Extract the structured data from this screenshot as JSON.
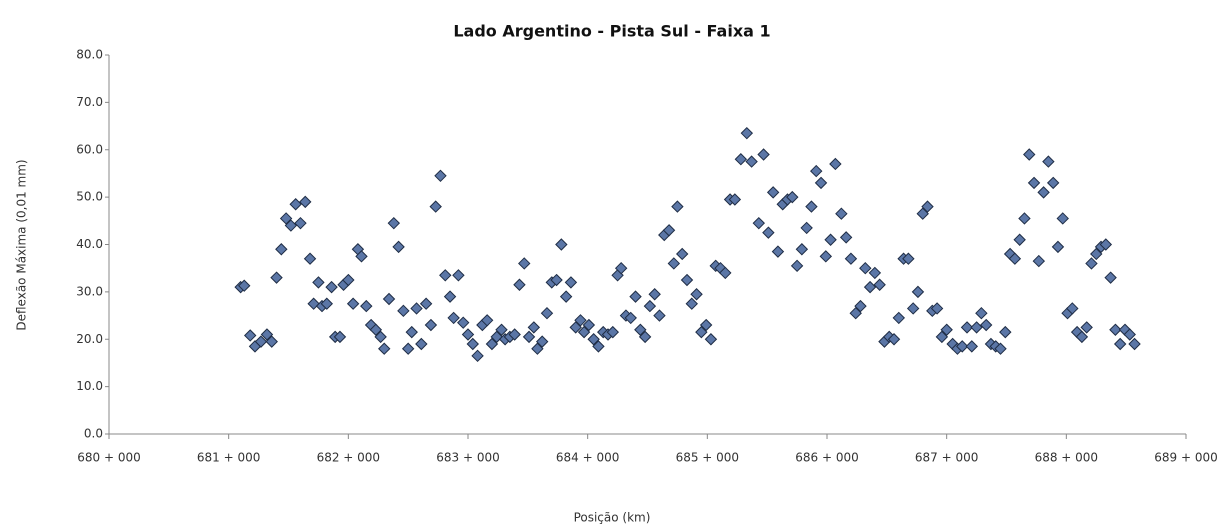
{
  "chart_data": {
    "type": "scatter",
    "title": "Lado Argentino - Pista Sul - Faixa 1",
    "x_label": "Posição (km)",
    "y_label": "Deflexão Máxima (0,01 mm)",
    "color": "#5b76a6",
    "grid": false,
    "xlim": [
      680,
      689
    ],
    "ylim": [
      0,
      80
    ],
    "xticks": [
      {
        "value": 680,
        "label": "680 + 000"
      },
      {
        "value": 681,
        "label": "681 + 000"
      },
      {
        "value": 682,
        "label": "682 + 000"
      },
      {
        "value": 683,
        "label": "683 + 000"
      },
      {
        "value": 684,
        "label": "684 + 000"
      },
      {
        "value": 685,
        "label": "685 + 000"
      },
      {
        "value": 686,
        "label": "686 + 000"
      },
      {
        "value": 687,
        "label": "687 + 000"
      },
      {
        "value": 688,
        "label": "688 + 000"
      },
      {
        "value": 689,
        "label": "689 + 000"
      }
    ],
    "yticks": [
      {
        "value": 0,
        "label": "0.0"
      },
      {
        "value": 10,
        "label": "10.0"
      },
      {
        "value": 20,
        "label": "20.0"
      },
      {
        "value": 30,
        "label": "30.0"
      },
      {
        "value": 40,
        "label": "40.0"
      },
      {
        "value": 50,
        "label": "50.0"
      },
      {
        "value": 60,
        "label": "60.0"
      },
      {
        "value": 70,
        "label": "70.0"
      },
      {
        "value": 80,
        "label": "80.0"
      }
    ],
    "x": [
      681.1,
      681.13,
      681.18,
      681.22,
      681.27,
      681.32,
      681.36,
      681.4,
      681.44,
      681.48,
      681.52,
      681.56,
      681.6,
      681.64,
      681.68,
      681.71,
      681.75,
      681.78,
      681.82,
      681.86,
      681.89,
      681.93,
      681.96,
      682.0,
      682.04,
      682.08,
      682.11,
      682.15,
      682.19,
      682.23,
      682.27,
      682.3,
      682.34,
      682.38,
      682.42,
      682.46,
      682.5,
      682.53,
      682.57,
      682.61,
      682.65,
      682.69,
      682.73,
      682.77,
      682.81,
      682.85,
      682.88,
      682.92,
      682.96,
      683.0,
      683.04,
      683.08,
      683.12,
      683.16,
      683.2,
      683.24,
      683.28,
      683.31,
      683.35,
      683.39,
      683.43,
      683.47,
      683.51,
      683.55,
      683.58,
      683.62,
      683.66,
      683.7,
      683.74,
      683.78,
      683.82,
      683.86,
      683.9,
      683.94,
      683.97,
      684.01,
      684.05,
      684.09,
      684.13,
      684.17,
      684.21,
      684.25,
      684.28,
      684.32,
      684.36,
      684.4,
      684.44,
      684.48,
      684.52,
      684.56,
      684.6,
      684.64,
      684.68,
      684.72,
      684.75,
      684.79,
      684.83,
      684.87,
      684.91,
      684.95,
      684.99,
      685.03,
      685.07,
      685.11,
      685.15,
      685.19,
      685.23,
      685.28,
      685.33,
      685.37,
      685.43,
      685.47,
      685.51,
      685.55,
      685.59,
      685.63,
      685.67,
      685.71,
      685.75,
      685.79,
      685.83,
      685.87,
      685.91,
      685.95,
      685.99,
      686.03,
      686.07,
      686.12,
      686.16,
      686.2,
      686.24,
      686.28,
      686.32,
      686.36,
      686.4,
      686.44,
      686.48,
      686.52,
      686.56,
      686.6,
      686.64,
      686.68,
      686.72,
      686.76,
      686.8,
      686.84,
      686.88,
      686.92,
      686.96,
      687.0,
      687.05,
      687.09,
      687.13,
      687.17,
      687.21,
      687.25,
      687.29,
      687.33,
      687.37,
      687.41,
      687.45,
      687.49,
      687.53,
      687.57,
      687.61,
      687.65,
      687.69,
      687.73,
      687.77,
      687.81,
      687.85,
      687.89,
      687.93,
      687.97,
      688.01,
      688.05,
      688.09,
      688.13,
      688.17,
      688.21,
      688.25,
      688.29,
      688.33,
      688.37,
      688.41,
      688.45,
      688.49,
      688.53,
      688.57
    ],
    "y": [
      31,
      31.3,
      20.8,
      18.5,
      19.5,
      21,
      19.5,
      33,
      39,
      45.5,
      44,
      48.5,
      44.5,
      49,
      37,
      27.5,
      32,
      27,
      27.5,
      31,
      20.5,
      20.5,
      31.5,
      32.5,
      27.5,
      39,
      37.5,
      27,
      23,
      22,
      20.5,
      18,
      28.5,
      44.5,
      39.5,
      26,
      18,
      21.5,
      26.5,
      19,
      27.5,
      23,
      48,
      54.5,
      33.5,
      29,
      24.5,
      33.5,
      23.5,
      21,
      19,
      16.5,
      23,
      24,
      19,
      20.5,
      22,
      20,
      20.5,
      21,
      31.5,
      36,
      20.5,
      22.5,
      18,
      19.5,
      25.5,
      32,
      32.5,
      40,
      29,
      32,
      22.5,
      24,
      21.5,
      23,
      20,
      18.5,
      21.5,
      21,
      21.5,
      33.5,
      35,
      25,
      24.5,
      29,
      22,
      20.5,
      27,
      29.5,
      25,
      42,
      43,
      36,
      48,
      38,
      32.5,
      27.5,
      29.5,
      21.5,
      23,
      20,
      35.5,
      35,
      34,
      49.5,
      49.5,
      58,
      63.5,
      57.5,
      44.5,
      59,
      42.5,
      51,
      38.5,
      48.5,
      49.5,
      50,
      35.5,
      39,
      43.5,
      48,
      55.5,
      53,
      37.5,
      41,
      57,
      46.5,
      41.5,
      37,
      25.5,
      27,
      35,
      31,
      34,
      31.5,
      19.5,
      20.5,
      20,
      24.5,
      37,
      37,
      26.5,
      30,
      46.5,
      48,
      26,
      26.5,
      20.5,
      22,
      19,
      18,
      18.5,
      22.5,
      18.5,
      22.5,
      25.5,
      23,
      19,
      18.5,
      18,
      21.5,
      38,
      37,
      41,
      45.5,
      59,
      53,
      36.5,
      51,
      57.5,
      53,
      39.5,
      45.5,
      25.5,
      26.5,
      21.5,
      20.5,
      22.5,
      36,
      38,
      39.5,
      40,
      33,
      22,
      19,
      22,
      21,
      19
    ]
  }
}
